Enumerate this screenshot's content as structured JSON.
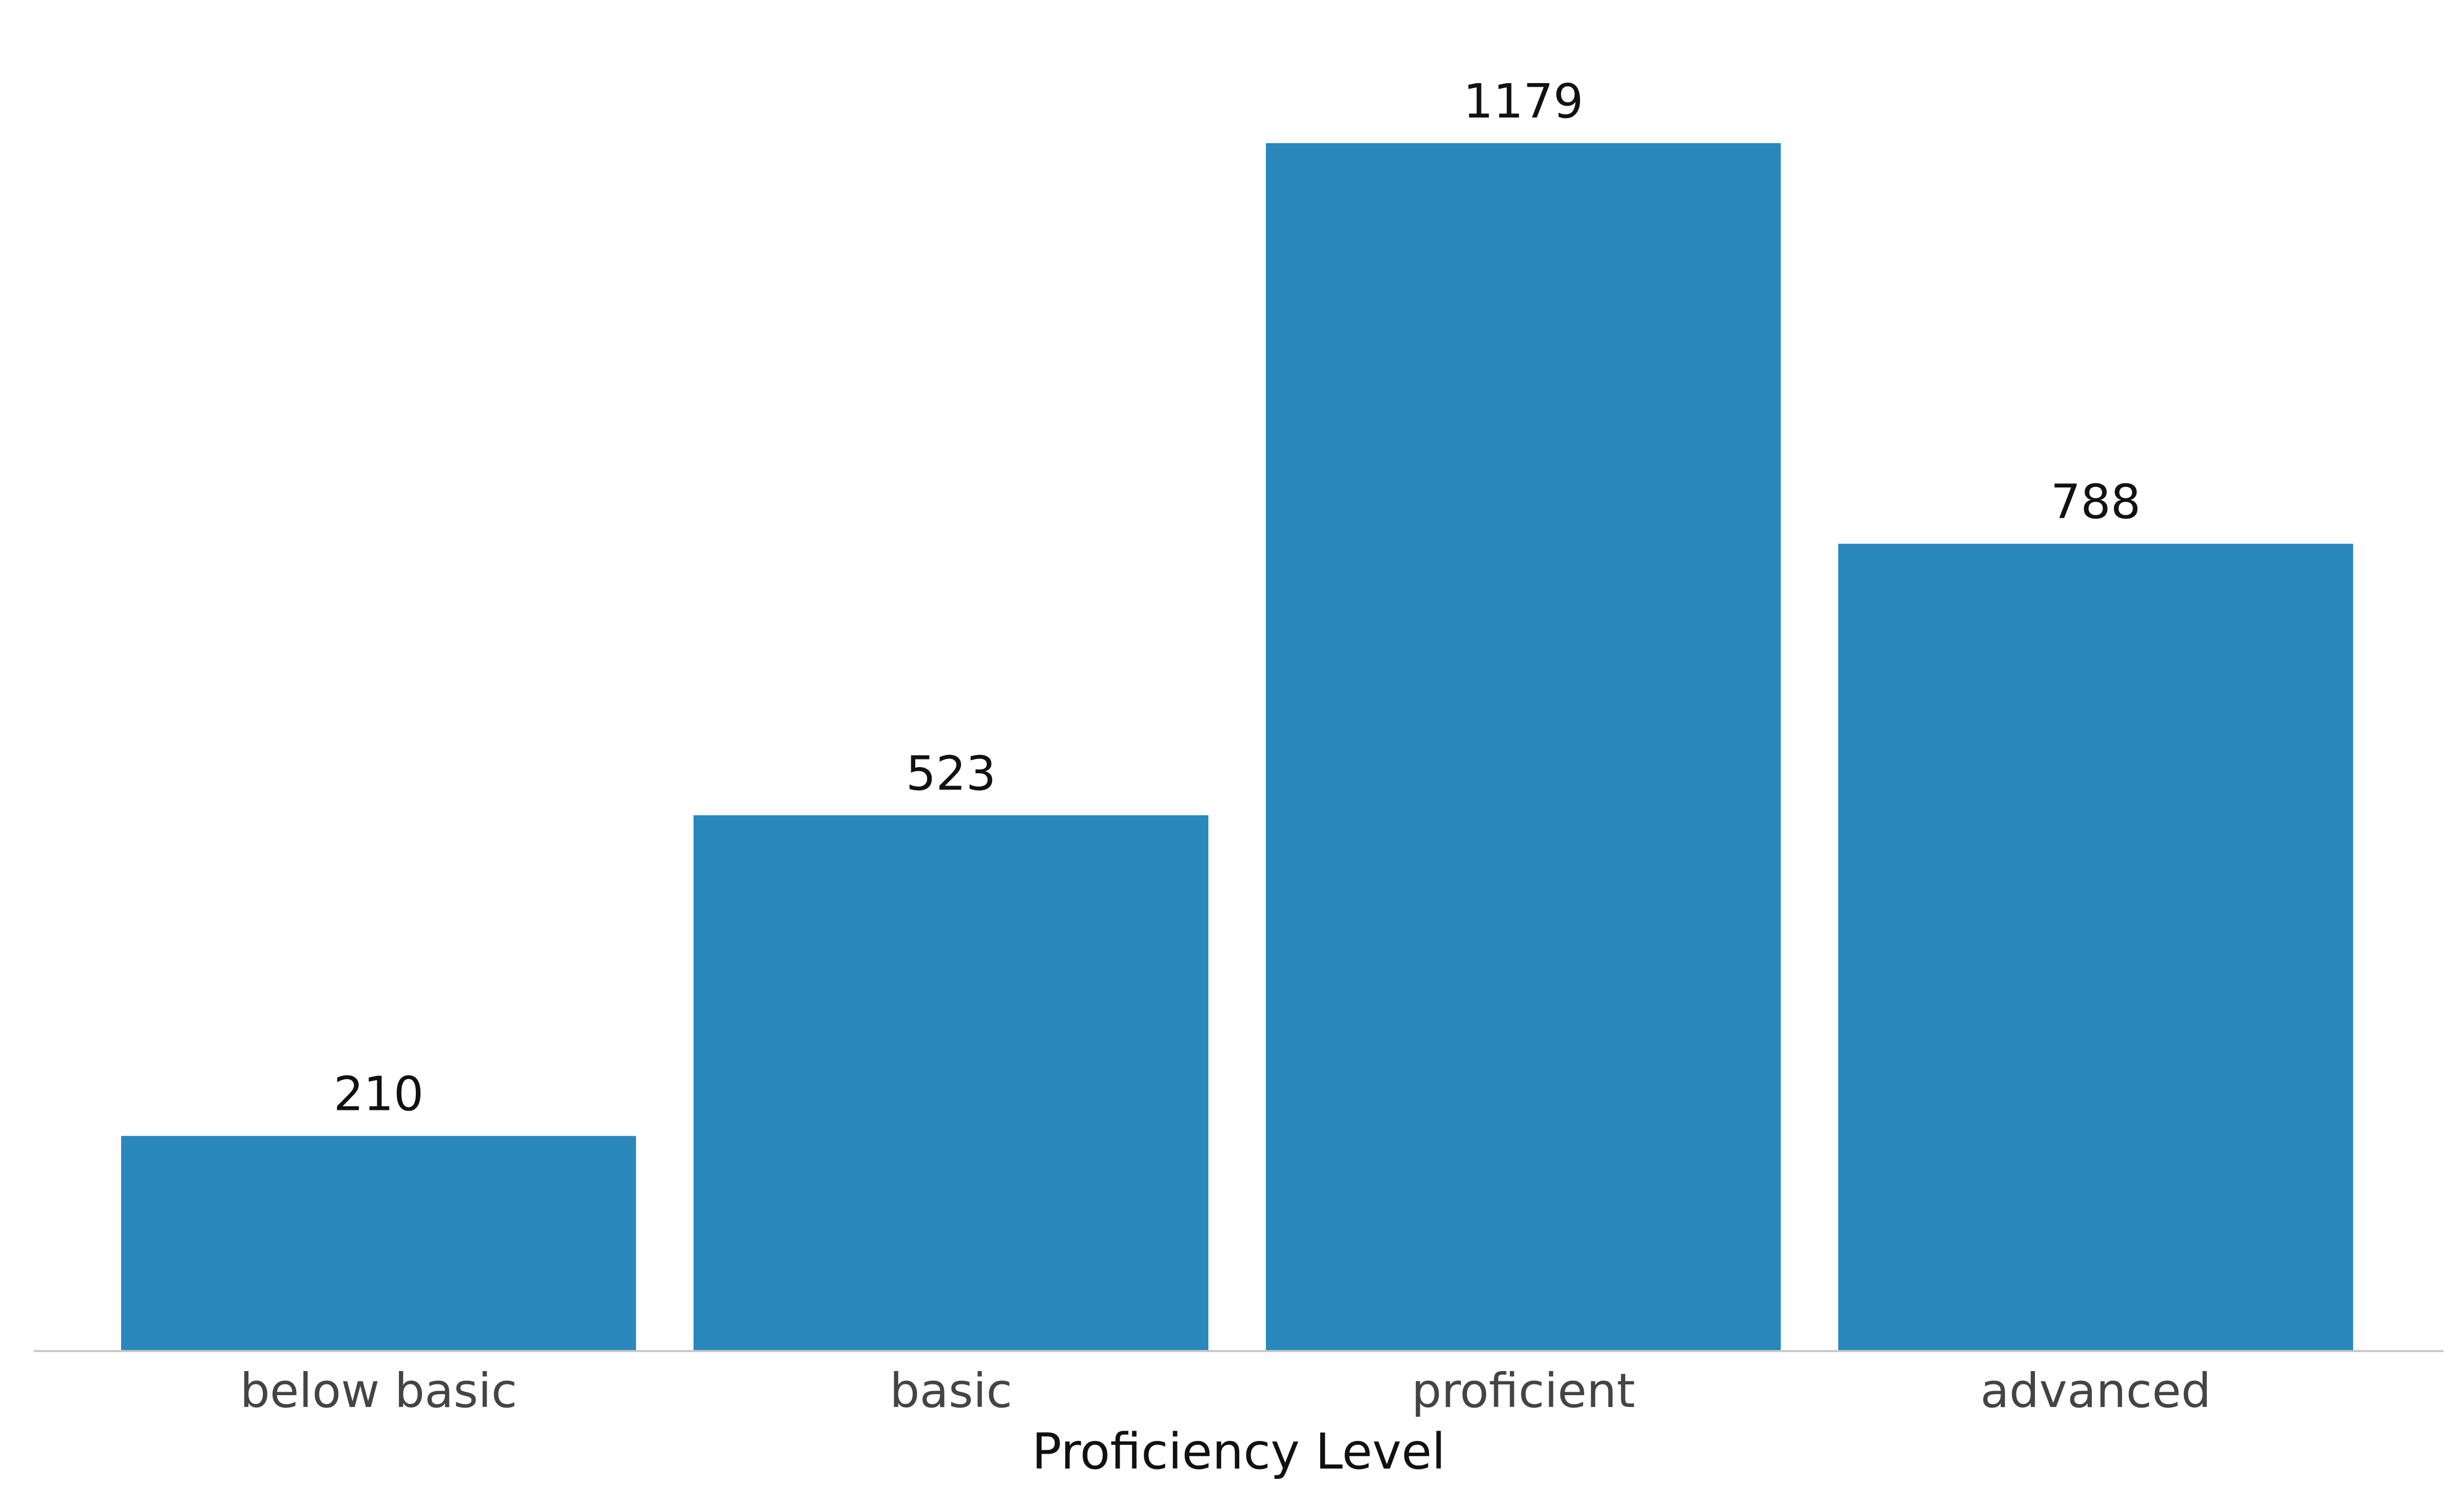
{
  "chart_data": {
    "type": "bar",
    "categories": [
      "below basic",
      "basic",
      "proficient",
      "advanced"
    ],
    "values": [
      210,
      523,
      1179,
      788
    ],
    "data_labels": [
      "210",
      "523",
      "1179",
      "788"
    ],
    "title": "",
    "xlabel": "Proficiency Level",
    "ylabel": "",
    "ylim": [
      0,
      1300
    ],
    "grid": false,
    "legend": "none",
    "colors": {
      "bar": "#2a88bd",
      "baseline": "#c8c8c8",
      "tick_text": "#444444",
      "label_text": "#111111"
    }
  }
}
